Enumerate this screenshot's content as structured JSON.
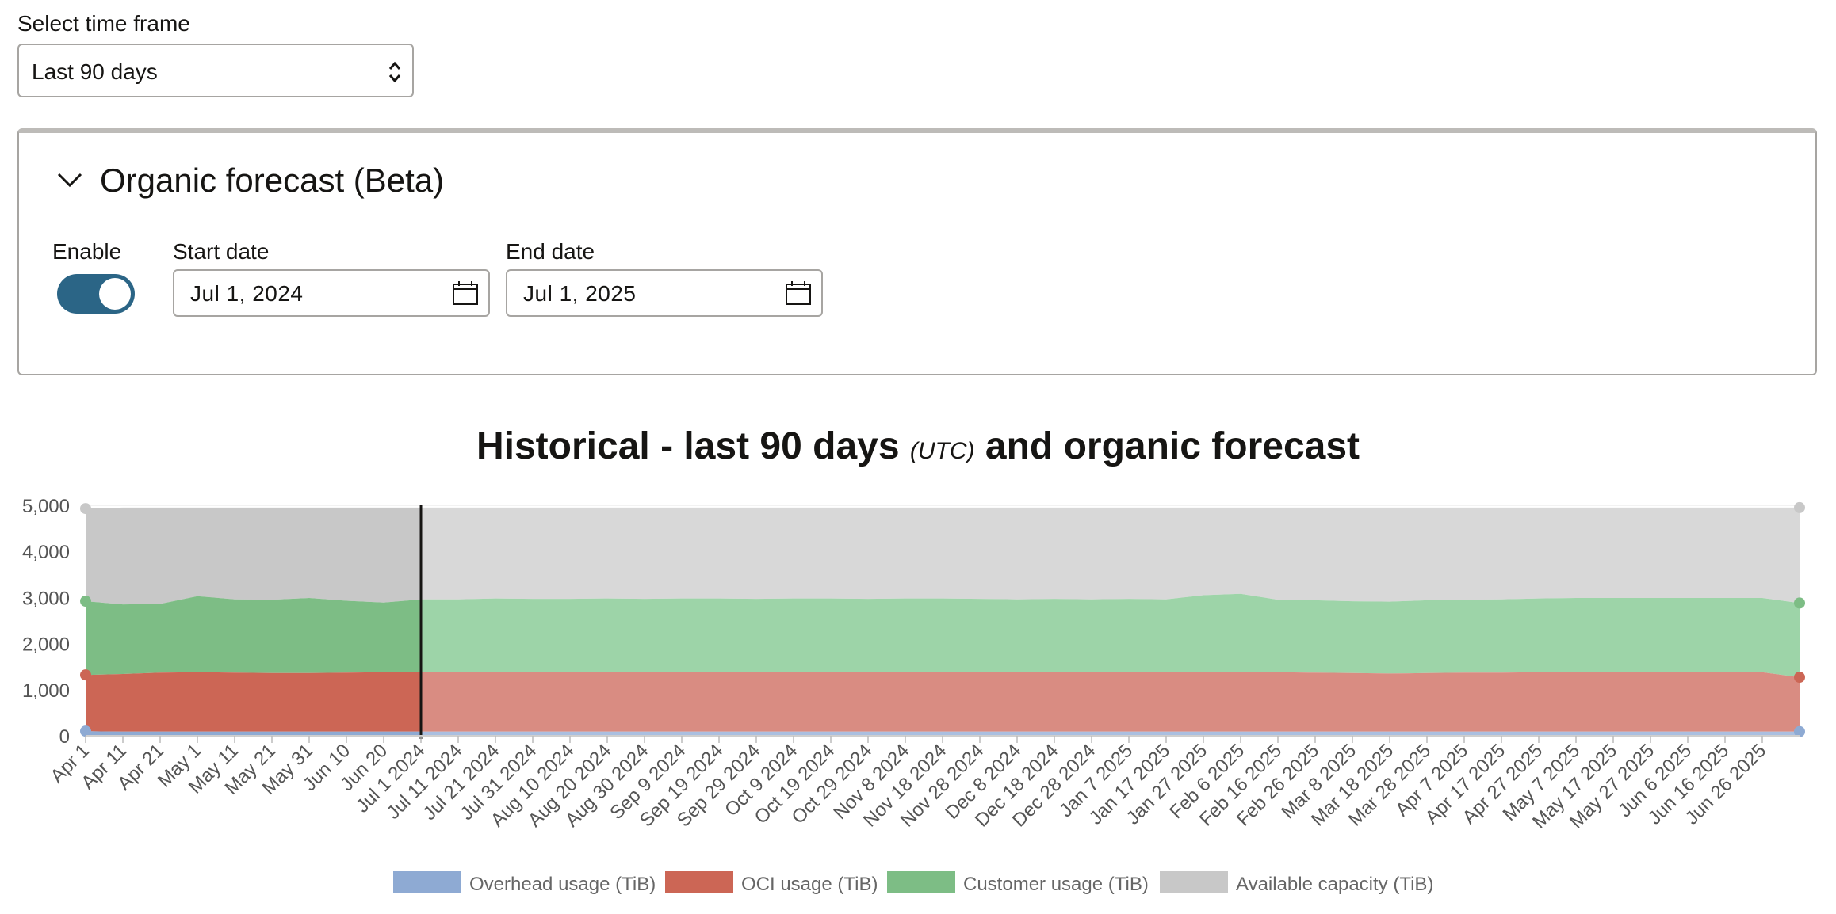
{
  "timeframe": {
    "label": "Select time frame",
    "value": "Last 90 days"
  },
  "forecast_panel": {
    "title": "Organic forecast (Beta)",
    "enable_label": "Enable",
    "enabled": true,
    "start_label": "Start date",
    "start_value": "Jul 1, 2024",
    "end_label": "End date",
    "end_value": "Jul 1, 2025"
  },
  "colors": {
    "overhead_hist": "#8eaad3",
    "oci_hist": "#cc6655",
    "customer_hist": "#7dbd85",
    "available_hist": "#c8c8c8",
    "overhead_fc": "#aabfe0",
    "oci_fc": "#d98c82",
    "customer_fc": "#9dd4a8",
    "available_fc": "#d8d8d8",
    "toggle_on": "#2b6586"
  },
  "chart_data": {
    "type": "area",
    "stacked": true,
    "title_main_1": "Historical - last 90 days",
    "title_utc": "(UTC)",
    "title_main_2": "and organic forecast",
    "ylim": [
      0,
      5000
    ],
    "yticks": [
      "0",
      "1,000",
      "2,000",
      "3,000",
      "4,000",
      "5,000"
    ],
    "x_tick_labels": [
      "Apr 1",
      "Apr 11",
      "Apr 21",
      "May 1",
      "May 11",
      "May 21",
      "May 31",
      "Jun 10",
      "Jun 20",
      "Jul 1 2024",
      "Jul 11 2024",
      "Jul 21 2024",
      "Jul 31 2024",
      "Aug 10 2024",
      "Aug 20 2024",
      "Aug 30 2024",
      "Sep 9 2024",
      "Sep 19 2024",
      "Sep 29 2024",
      "Oct 9 2024",
      "Oct 19 2024",
      "Oct 29 2024",
      "Nov 8 2024",
      "Nov 18 2024",
      "Nov 28 2024",
      "Dec 8 2024",
      "Dec 18 2024",
      "Dec 28 2024",
      "Jan 7 2025",
      "Jan 17 2025",
      "Jan 27 2025",
      "Feb 6 2025",
      "Feb 16 2025",
      "Feb 26 2025",
      "Mar 8 2025",
      "Mar 18 2025",
      "Mar 28 2025",
      "Apr 7 2025",
      "Apr 17 2025",
      "Apr 27 2025",
      "May 7 2025",
      "May 17 2025",
      "May 27 2025",
      "Jun 6 2025",
      "Jun 16 2025",
      "Jun 26 2025"
    ],
    "historical_end_label": "Jul 1 2024",
    "legend": [
      "Overhead usage (TiB)",
      "OCI usage (TiB)",
      "Customer usage (TiB)",
      "Available capacity (TiB)"
    ],
    "series_top_values": {
      "Overhead usage (TiB)": [
        100,
        90,
        90,
        90,
        90,
        90,
        90,
        90,
        90,
        90,
        90,
        90,
        90,
        90,
        90,
        90,
        90,
        90,
        90,
        90,
        90,
        90,
        90,
        90,
        90,
        90,
        90,
        90,
        90,
        90,
        90,
        90,
        90,
        90,
        90,
        90,
        90,
        90,
        90,
        90,
        90,
        90,
        90,
        90,
        90,
        90,
        90
      ],
      "OCI usage (TiB)": [
        1320,
        1340,
        1370,
        1380,
        1370,
        1360,
        1360,
        1370,
        1380,
        1390,
        1380,
        1380,
        1380,
        1390,
        1380,
        1380,
        1380,
        1380,
        1380,
        1380,
        1380,
        1380,
        1380,
        1380,
        1380,
        1380,
        1380,
        1380,
        1380,
        1380,
        1380,
        1380,
        1380,
        1370,
        1360,
        1350,
        1360,
        1370,
        1370,
        1380,
        1380,
        1380,
        1380,
        1380,
        1380,
        1380,
        1270
      ],
      "Customer usage (TiB)": [
        2920,
        2850,
        2860,
        3030,
        2960,
        2950,
        2990,
        2930,
        2890,
        2960,
        2960,
        2980,
        2970,
        2970,
        2980,
        2970,
        2980,
        2980,
        2970,
        2980,
        2980,
        2970,
        2980,
        2980,
        2970,
        2960,
        2970,
        2960,
        2970,
        2960,
        3050,
        3080,
        2950,
        2940,
        2920,
        2910,
        2940,
        2950,
        2960,
        2980,
        2990,
        2990,
        2990,
        2990,
        2990,
        2990,
        2880
      ],
      "Available capacity (TiB)": [
        4930,
        4950,
        4950,
        4950,
        4950,
        4950,
        4950,
        4950,
        4950,
        4950,
        4950,
        4950,
        4950,
        4950,
        4950,
        4950,
        4950,
        4950,
        4950,
        4950,
        4950,
        4950,
        4950,
        4950,
        4950,
        4950,
        4950,
        4950,
        4950,
        4950,
        4950,
        4950,
        4950,
        4950,
        4950,
        4950,
        4950,
        4950,
        4950,
        4950,
        4950,
        4950,
        4950,
        4950,
        4950,
        4950,
        4950
      ]
    }
  }
}
